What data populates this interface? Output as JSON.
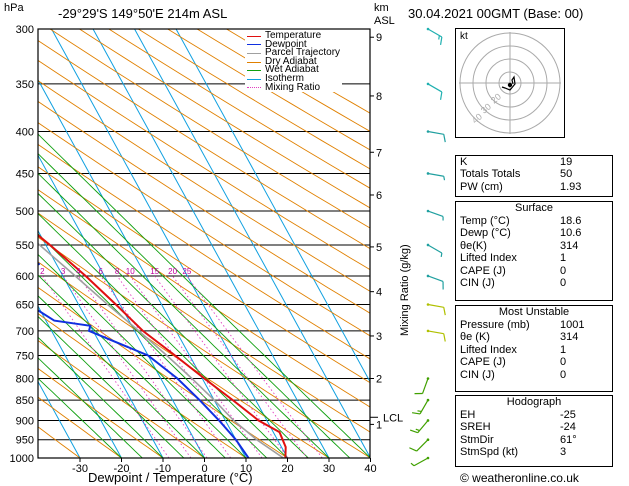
{
  "header": {
    "unit_hpa": "hPa",
    "location": "-29°29'S 149°50'E 214m ASL",
    "km_asl_1": "km",
    "km_asl_2": "ASL",
    "datetime": "30.04.2021 00GMT (Base: 00)"
  },
  "chart_data": {
    "type": "skew-t",
    "xlabel": "Dewpoint / Temperature (°C)",
    "ylabel_left": "hPa",
    "ylabel_right": "Mixing Ratio (g/kg)",
    "pressure_ticks": [
      300,
      350,
      400,
      450,
      500,
      550,
      600,
      650,
      700,
      750,
      800,
      850,
      900,
      950,
      1000
    ],
    "temp_ticks": [
      -30,
      -20,
      -10,
      0,
      10,
      20,
      30,
      40
    ],
    "temp_tick_labels": [
      "-30",
      "-20",
      "-10",
      "0",
      "10",
      "20",
      "30",
      "40"
    ],
    "km_ticks": [
      {
        "label": "9",
        "p": 307
      },
      {
        "label": "8",
        "p": 362
      },
      {
        "label": "7",
        "p": 424
      },
      {
        "label": "6",
        "p": 478
      },
      {
        "label": "5",
        "p": 553
      },
      {
        "label": "4",
        "p": 627
      },
      {
        "label": "3",
        "p": 710
      },
      {
        "label": "2",
        "p": 800
      },
      {
        "label": "1",
        "p": 910
      }
    ],
    "lcl": {
      "label": "LCL",
      "p": 892
    },
    "mixing_ratio_labels": [
      {
        "label": "2",
        "x": 2
      },
      {
        "label": "3",
        "x": 3
      },
      {
        "label": "4",
        "x": 4
      },
      {
        "label": "6",
        "x": 6
      },
      {
        "label": "8",
        "x": 8
      },
      {
        "label": "10",
        "x": 10
      },
      {
        "label": "15",
        "x": 15
      },
      {
        "label": "20",
        "x": 20
      },
      {
        "label": "25",
        "x": 25
      }
    ],
    "series": [
      {
        "name": "Temperature",
        "color": "#e01010",
        "points": [
          [
            1000,
            19.5
          ],
          [
            970,
            21.0
          ],
          [
            930,
            21.5
          ],
          [
            900,
            18.0
          ],
          [
            850,
            14.5
          ],
          [
            800,
            10.5
          ],
          [
            750,
            6.5
          ],
          [
            700,
            2.0
          ],
          [
            650,
            -1.0
          ],
          [
            600,
            -4.5
          ],
          [
            550,
            -9.0
          ],
          [
            500,
            -14.5
          ],
          [
            450,
            -20.5
          ],
          [
            400,
            -27.0
          ],
          [
            350,
            -35.5
          ],
          [
            300,
            -45.0
          ]
        ]
      },
      {
        "name": "Dewpoint",
        "color": "#1030e0",
        "points": [
          [
            1000,
            10.6
          ],
          [
            950,
            10.0
          ],
          [
            900,
            8.5
          ],
          [
            850,
            6.5
          ],
          [
            800,
            4.0
          ],
          [
            750,
            0.0
          ],
          [
            700,
            -11.0
          ],
          [
            690,
            -10.0
          ],
          [
            680,
            -18.0
          ],
          [
            650,
            -22.0
          ],
          [
            600,
            -25.0
          ],
          [
            580,
            -14.0
          ],
          [
            570,
            -31.0
          ],
          [
            560,
            -25.0
          ],
          [
            540,
            -17.0
          ],
          [
            510,
            -18.0
          ],
          [
            490,
            -20.0
          ],
          [
            460,
            -24.0
          ],
          [
            440,
            -22.0
          ],
          [
            420,
            -24.0
          ],
          [
            410,
            -32.0
          ],
          [
            400,
            -42.0
          ],
          [
            380,
            -47.0
          ],
          [
            350,
            -51.0
          ],
          [
            320,
            -53.0
          ],
          [
            300,
            -60.0
          ]
        ]
      },
      {
        "name": "Parcel Trajectory",
        "color": "#a0a0a0",
        "points": [
          [
            1000,
            19.0
          ],
          [
            950,
            15.0
          ],
          [
            900,
            12.0
          ],
          [
            850,
            10.0
          ],
          [
            800,
            7.5
          ],
          [
            750,
            4.5
          ],
          [
            700,
            1.0
          ],
          [
            650,
            -3.0
          ],
          [
            600,
            -7.0
          ],
          [
            550,
            -11.5
          ],
          [
            500,
            -17.0
          ],
          [
            450,
            -23.0
          ],
          [
            400,
            -30.0
          ],
          [
            350,
            -38.0
          ],
          [
            300,
            -47.0
          ]
        ]
      }
    ],
    "legend": [
      "Temperature",
      "Dewpoint",
      "Parcel Trajectory",
      "Dry Adiabat",
      "Wet Adiabat",
      "Isotherm",
      "Mixing Ratio"
    ],
    "legend_colors": [
      "#e01010",
      "#1030e0",
      "#a0a0a0",
      "#e08000",
      "#10a010",
      "#10a0e0",
      "#e040c0"
    ],
    "wind_barbs": [
      {
        "p": 1000,
        "spd": 5,
        "dir": 61
      },
      {
        "p": 950,
        "spd": 10,
        "dir": 45
      },
      {
        "p": 900,
        "spd": 15,
        "dir": 40
      },
      {
        "p": 850,
        "spd": 15,
        "dir": 30
      },
      {
        "p": 800,
        "spd": 10,
        "dir": 20
      },
      {
        "p": 700,
        "spd": 10,
        "dir": 280
      },
      {
        "p": 650,
        "spd": 10,
        "dir": 280
      },
      {
        "p": 600,
        "spd": 10,
        "dir": 290
      },
      {
        "p": 550,
        "spd": 5,
        "dir": 300
      },
      {
        "p": 500,
        "spd": 5,
        "dir": 290
      },
      {
        "p": 450,
        "spd": 5,
        "dir": 280
      },
      {
        "p": 400,
        "spd": 10,
        "dir": 280
      },
      {
        "p": 350,
        "spd": 10,
        "dir": 300
      },
      {
        "p": 300,
        "spd": 15,
        "dir": 300
      }
    ],
    "hodograph": {
      "label": "kt",
      "rings": [
        "40",
        "30",
        "20"
      ]
    }
  },
  "indices": {
    "general": [
      {
        "label": "K",
        "value": "19"
      },
      {
        "label": "Totals Totals",
        "value": "50"
      },
      {
        "label": "PW (cm)",
        "value": "1.93"
      }
    ],
    "surface_title": "Surface",
    "surface": [
      {
        "label": "Temp (°C)",
        "value": "18.6"
      },
      {
        "label": "Dewp (°C)",
        "value": "10.6"
      },
      {
        "label": "θe(K)",
        "value": "314"
      },
      {
        "label": "Lifted Index",
        "value": "1"
      },
      {
        "label": "CAPE (J)",
        "value": "0"
      },
      {
        "label": "CIN (J)",
        "value": "0"
      }
    ],
    "unstable_title": "Most Unstable",
    "unstable": [
      {
        "label": "Pressure (mb)",
        "value": "1001"
      },
      {
        "label": "θe (K)",
        "value": "314"
      },
      {
        "label": "Lifted Index",
        "value": "1"
      },
      {
        "label": "CAPE (J)",
        "value": "0"
      },
      {
        "label": "CIN (J)",
        "value": "0"
      }
    ],
    "hodo_title": "Hodograph",
    "hodo": [
      {
        "label": "EH",
        "value": "-25"
      },
      {
        "label": "SREH",
        "value": "-24"
      },
      {
        "label": "StmDir",
        "value": "61°"
      },
      {
        "label": "StmSpd (kt)",
        "value": "3"
      }
    ]
  },
  "footer": {
    "copyright": "© weatheronline.co.uk"
  }
}
